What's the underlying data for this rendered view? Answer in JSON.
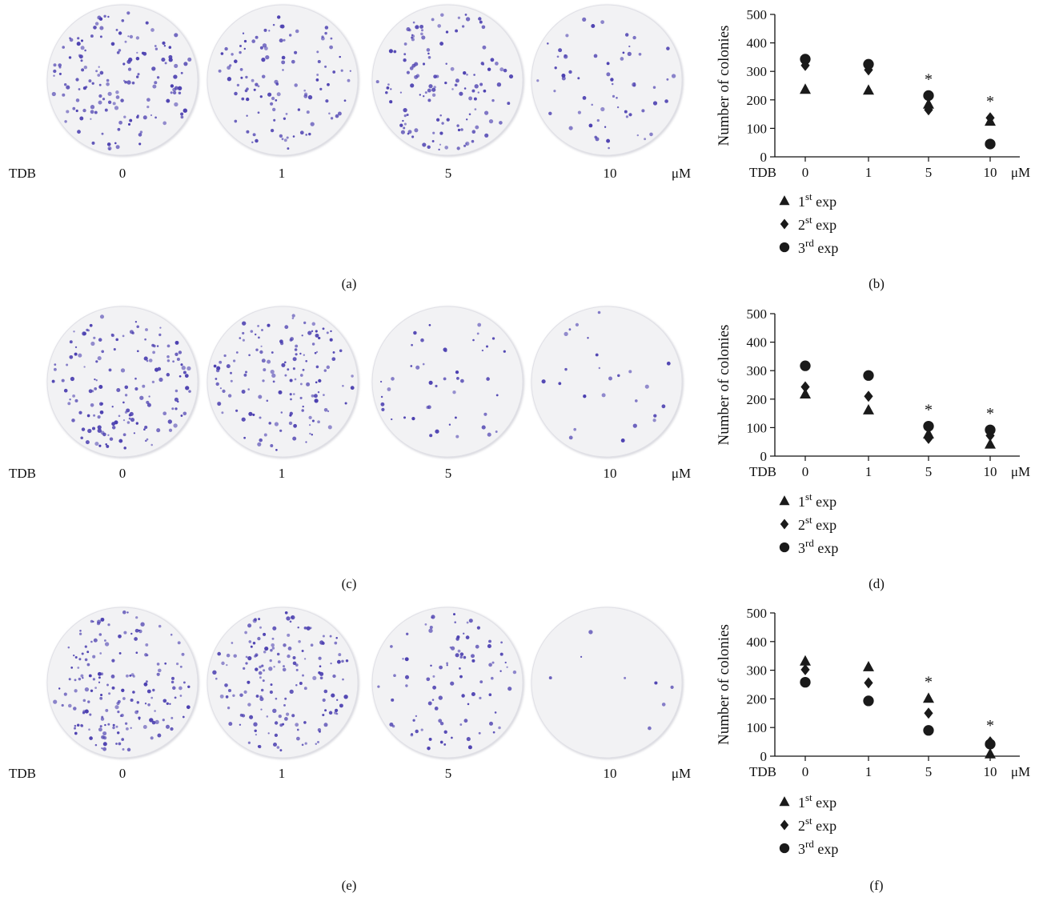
{
  "colors": {
    "marker": "#1a1a1a",
    "colony": "#4b3fb0",
    "plate": "#f2f2f4"
  },
  "panels": [
    {
      "label": "(a)",
      "dose_prefix": "TDB",
      "doses": [
        "0",
        "1",
        "5",
        "10"
      ],
      "unit": "μM",
      "colony_counts_visual": [
        150,
        110,
        130,
        60
      ]
    },
    {
      "label": "(c)",
      "dose_prefix": "TDB",
      "doses": [
        "0",
        "1",
        "5",
        "10"
      ],
      "unit": "μM",
      "colony_counts_visual": [
        150,
        140,
        45,
        25
      ]
    },
    {
      "label": "(e)",
      "dose_prefix": "TDB",
      "doses": [
        "0",
        "1",
        "5",
        "10"
      ],
      "unit": "μM",
      "colony_counts_visual": [
        170,
        160,
        90,
        8
      ]
    }
  ],
  "legend": [
    {
      "marker": "triangle",
      "base": "1",
      "sup": "st",
      "text": " exp"
    },
    {
      "marker": "diamond",
      "base": "2",
      "sup": "st",
      "text": " exp"
    },
    {
      "marker": "circle",
      "base": "3",
      "sup": "rd",
      "text": " exp"
    }
  ],
  "chart_data": [
    {
      "panel": "(b)",
      "type": "scatter",
      "ylabel": "Number of colonies",
      "x_prefix": "TDB",
      "x_unit": "μM",
      "categories": [
        "0",
        "1",
        "5",
        "10"
      ],
      "ylim": [
        0,
        500
      ],
      "yticks": [
        "0",
        "100",
        "200",
        "300",
        "400",
        "500"
      ],
      "series": [
        {
          "marker": "triangle",
          "values": [
            237,
            234,
            185,
            125
          ]
        },
        {
          "marker": "diamond",
          "values": [
            321,
            305,
            165,
            137
          ]
        },
        {
          "marker": "circle",
          "values": [
            343,
            325,
            215,
            45
          ]
        }
      ],
      "significance": [
        "",
        "",
        "*",
        "*"
      ]
    },
    {
      "panel": "(d)",
      "type": "scatter",
      "ylabel": "Number of colonies",
      "x_prefix": "TDB",
      "x_unit": "μM",
      "categories": [
        "0",
        "1",
        "5",
        "10"
      ],
      "ylim": [
        0,
        500
      ],
      "yticks": [
        "0",
        "100",
        "200",
        "300",
        "400",
        "500"
      ],
      "series": [
        {
          "marker": "triangle",
          "values": [
            218,
            162,
            78,
            42
          ]
        },
        {
          "marker": "diamond",
          "values": [
            243,
            210,
            62,
            72
          ]
        },
        {
          "marker": "circle",
          "values": [
            317,
            283,
            105,
            92
          ]
        }
      ],
      "significance": [
        "",
        "",
        "*",
        "*"
      ]
    },
    {
      "panel": "(f)",
      "type": "scatter",
      "ylabel": "Number of colonies",
      "x_prefix": "TDB",
      "x_unit": "μM",
      "categories": [
        "0",
        "1",
        "5",
        "10"
      ],
      "ylim": [
        0,
        500
      ],
      "yticks": [
        "0",
        "100",
        "200",
        "300",
        "400",
        "500"
      ],
      "series": [
        {
          "marker": "triangle",
          "values": [
            332,
            312,
            202,
            8
          ]
        },
        {
          "marker": "diamond",
          "values": [
            302,
            256,
            150,
            50
          ]
        },
        {
          "marker": "circle",
          "values": [
            258,
            193,
            90,
            42
          ]
        }
      ],
      "significance": [
        "",
        "",
        "*",
        "*"
      ]
    }
  ],
  "chart_labels": [
    "(b)",
    "(d)",
    "(f)"
  ]
}
